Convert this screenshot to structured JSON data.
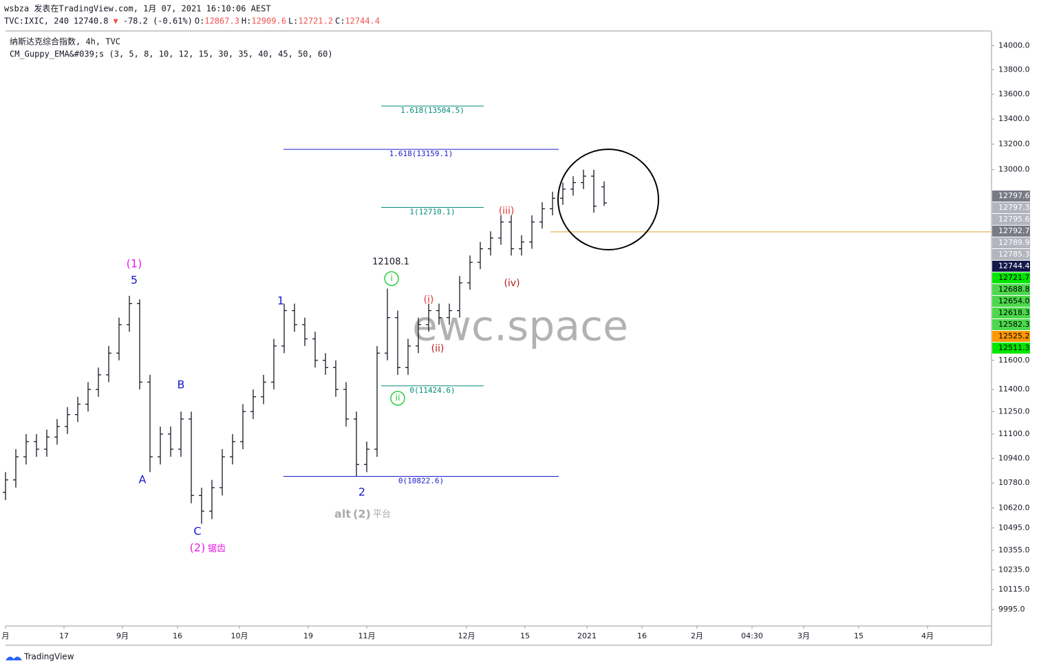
{
  "header": {
    "author_line": "wsbza 发表在TradingView.com, 1月 07, 2021 16:10:06 AEST",
    "symbol": "TVC:IXIC, 240",
    "price": "12740.8",
    "arrow": "▼",
    "change": "-78.2 (-0.61%)",
    "ohlc_labels": [
      "O:",
      "H:",
      "L:",
      "C:"
    ],
    "study_title": "纳斯达克综合指数, 4h, TVC",
    "indicator": "CM_Guppy_EMA&#039;s (3, 5, 8, 10, 12, 15, 30, 35, 40, 45, 50, 60)",
    "brand": "TradingView"
  },
  "chart_data": {
    "type": "ohlc",
    "log_scale": true,
    "color": "#131722",
    "x": [
      0,
      3,
      6,
      9,
      12,
      15,
      18,
      21,
      24,
      27,
      30,
      33,
      36,
      39,
      42,
      45,
      48,
      51,
      54,
      57,
      60,
      63,
      66,
      69,
      72,
      75,
      78,
      81,
      84,
      87,
      90,
      93,
      96,
      99,
      102,
      105,
      108,
      111,
      114,
      117,
      120,
      123,
      126,
      129,
      132,
      135,
      138,
      141,
      144,
      147,
      150,
      153,
      156,
      159,
      162,
      165,
      168,
      171,
      174
    ],
    "open": [
      10720,
      10800,
      10950,
      11050,
      11000,
      11080,
      11150,
      11230,
      11300,
      11400,
      11500,
      11650,
      11850,
      12000,
      11450,
      10950,
      11100,
      11000,
      11200,
      10700,
      10600,
      10750,
      10950,
      11050,
      11250,
      11350,
      11450,
      11700,
      11950,
      11850,
      11750,
      11600,
      11550,
      11400,
      11200,
      10900,
      11000,
      11650,
      11900,
      11550,
      11700,
      11850,
      11950,
      11900,
      11950,
      12150,
      12300,
      12400,
      12480,
      12600,
      12400,
      12450,
      12600,
      12700,
      12780,
      12850,
      12900,
      12950,
      12867.3
    ],
    "high": [
      10850,
      11000,
      11100,
      11100,
      11130,
      11200,
      11280,
      11350,
      11450,
      11550,
      11700,
      11900,
      12056,
      12030,
      11500,
      11150,
      11150,
      11250,
      11250,
      10750,
      10800,
      11000,
      11100,
      11300,
      11400,
      11500,
      11750,
      12000,
      12000,
      11900,
      11800,
      11650,
      11600,
      11450,
      11250,
      11050,
      11700,
      12108.1,
      11950,
      11750,
      11900,
      12000,
      12000,
      12000,
      12200,
      12350,
      12450,
      12530,
      12650,
      12650,
      12500,
      12650,
      12750,
      12830,
      12900,
      12950,
      13000,
      13000,
      12909.6
    ],
    "low": [
      10670,
      10750,
      10900,
      10950,
      10950,
      11030,
      11100,
      11180,
      11250,
      11350,
      11450,
      11600,
      11800,
      11400,
      10850,
      10900,
      10950,
      10950,
      10650,
      10520,
      10550,
      10700,
      10900,
      11000,
      11200,
      11300,
      11400,
      11650,
      11800,
      11700,
      11550,
      11500,
      11350,
      11150,
      10822.6,
      10850,
      10950,
      11600,
      11500,
      11500,
      11650,
      11800,
      11850,
      11850,
      11900,
      12100,
      12250,
      12350,
      12430,
      12350,
      12350,
      12400,
      12550,
      12650,
      12730,
      12800,
      12850,
      12670,
      12721.2
    ],
    "close": [
      10800,
      10950,
      11050,
      11000,
      11080,
      11150,
      11230,
      11300,
      11400,
      11500,
      11650,
      11850,
      12000,
      11450,
      10950,
      11100,
      11000,
      11200,
      10700,
      10600,
      10750,
      10950,
      11050,
      11250,
      11350,
      11450,
      11700,
      11950,
      11850,
      11750,
      11600,
      11550,
      11400,
      11200,
      10900,
      11000,
      11650,
      11900,
      11550,
      11700,
      11850,
      11950,
      11900,
      11950,
      12150,
      12300,
      12400,
      12480,
      12600,
      12400,
      12450,
      12600,
      12700,
      12780,
      12850,
      12900,
      12950,
      12720,
      12744.4
    ],
    "xlim": [
      0,
      286.4
    ],
    "ylim": [
      9897,
      14124
    ],
    "xticks": [
      {
        "value": 0,
        "label": "月"
      },
      {
        "value": 17,
        "label": "17"
      },
      {
        "value": 34,
        "label": "9月"
      },
      {
        "value": 50,
        "label": "16"
      },
      {
        "value": 68,
        "label": "10月"
      },
      {
        "value": 88,
        "label": "19"
      },
      {
        "value": 105,
        "label": "11月"
      },
      {
        "value": 134,
        "label": "12月"
      },
      {
        "value": 151,
        "label": "15"
      },
      {
        "value": 169,
        "label": "2021"
      },
      {
        "value": 185,
        "label": "16"
      },
      {
        "value": 201,
        "label": "2月"
      },
      {
        "value": 217,
        "label": "04:30"
      },
      {
        "value": 232,
        "label": "3月"
      },
      {
        "value": 248,
        "label": "15"
      },
      {
        "value": 268,
        "label": "4月"
      }
    ],
    "yticks": [
      {
        "value": 14000,
        "label": "14000.0"
      },
      {
        "value": 13800,
        "label": "13800.0"
      },
      {
        "value": 13600,
        "label": "13600.0"
      },
      {
        "value": 13400,
        "label": "13400.0"
      },
      {
        "value": 13200,
        "label": "13200.0"
      },
      {
        "value": 13000,
        "label": "13000.0"
      },
      {
        "value": 11600,
        "label": "11600.0"
      },
      {
        "value": 11400,
        "label": "11400.0"
      },
      {
        "value": 11250,
        "label": "11250.0"
      },
      {
        "value": 11100,
        "label": "11100.0"
      },
      {
        "value": 10940,
        "label": "10940.0"
      },
      {
        "value": 10780,
        "label": "10780.0"
      },
      {
        "value": 10620,
        "label": "10620.0"
      },
      {
        "value": 10495,
        "label": "10495.0"
      },
      {
        "value": 10355,
        "label": "10355.0"
      },
      {
        "value": 10235,
        "label": "10235.0"
      },
      {
        "value": 10115,
        "label": "10115.0"
      },
      {
        "value": 9995,
        "label": "9995.0"
      }
    ],
    "price_tags": [
      {
        "value": 12797.6,
        "label": "12797.6",
        "color": "#787b86"
      },
      {
        "value": 12797.3,
        "label": "12797.3",
        "color": "#b2b5be"
      },
      {
        "value": 12795.6,
        "label": "12795.6",
        "color": "#b2b5be"
      },
      {
        "value": 12792.7,
        "label": "12792.7",
        "color": "#787b86"
      },
      {
        "value": 12789.9,
        "label": "12789.9",
        "color": "#b2b5be"
      },
      {
        "value": 12785.3,
        "label": "12785.3",
        "color": "#b2b5be"
      },
      {
        "value": 12744.4,
        "label": "12744.4",
        "color": "#131a4a"
      },
      {
        "value": 12721.7,
        "label": "12721.7",
        "color": "#00e600"
      },
      {
        "value": 12688.8,
        "label": "12688.8",
        "color": "#4cd84c"
      },
      {
        "value": 12654.0,
        "label": "12654.0",
        "color": "#4cd84c"
      },
      {
        "value": 12618.3,
        "label": "12618.3",
        "color": "#4cd84c"
      },
      {
        "value": 12582.3,
        "label": "12582.3",
        "color": "#4cd84c"
      },
      {
        "value": 12525.2,
        "label": "12525.2",
        "color": "#ff9800"
      },
      {
        "value": 12511.3,
        "label": "12511.3",
        "color": "#00e600"
      }
    ],
    "fib_levels": [
      {
        "value": 13504.5,
        "label": "1.618(13504.5)",
        "color": "#00897b"
      },
      {
        "value": 13159.1,
        "label": "1.618(13159.1)",
        "color": "#1a1acc"
      },
      {
        "value": 12710.1,
        "label": "1(12710.1)",
        "color": "#00897b"
      },
      {
        "value": 11424.6,
        "label": "0(11424.6)",
        "color": "#00897b"
      },
      {
        "value": 10822.6,
        "label": "0(10822.6)",
        "color": "#1a1acc"
      }
    ],
    "annotations": [
      "(1)",
      "5",
      "A",
      "B",
      "C",
      "(2)",
      "锯齿",
      "1",
      "2",
      "alt",
      "(2)",
      "平台",
      "12108.1",
      "i",
      "ii",
      "(i)",
      "(ii)",
      "(iii)",
      "(iv)"
    ],
    "watermark": "ewc.space"
  }
}
